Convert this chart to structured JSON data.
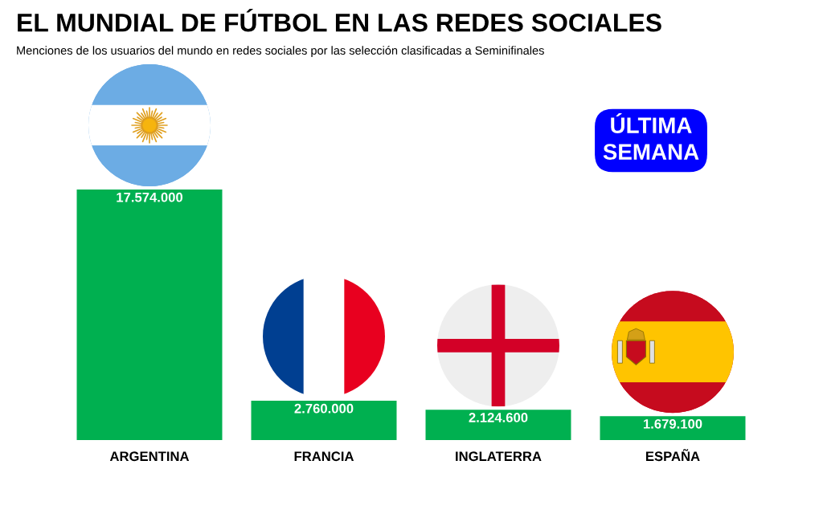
{
  "chart_data": {
    "type": "bar",
    "title": "EL MUNDIAL DE FÚTBOL EN LAS REDES SOCIALES",
    "subtitle": "Menciones de los usuarios del mundo en redes sociales por las selección clasificadas a Seminifinales",
    "categories": [
      "ARGENTINA",
      "FRANCIA",
      "INGLATERRA",
      "ESPAÑA"
    ],
    "values": [
      17574000,
      2760000,
      2124600,
      1679100
    ],
    "color": "#00b050",
    "value_labels": [
      "17.574.000",
      "2.760.000",
      "2.124.600",
      "1.679.100"
    ],
    "annotations": [
      "ÚLTIMA\nSEMANA"
    ]
  }
}
